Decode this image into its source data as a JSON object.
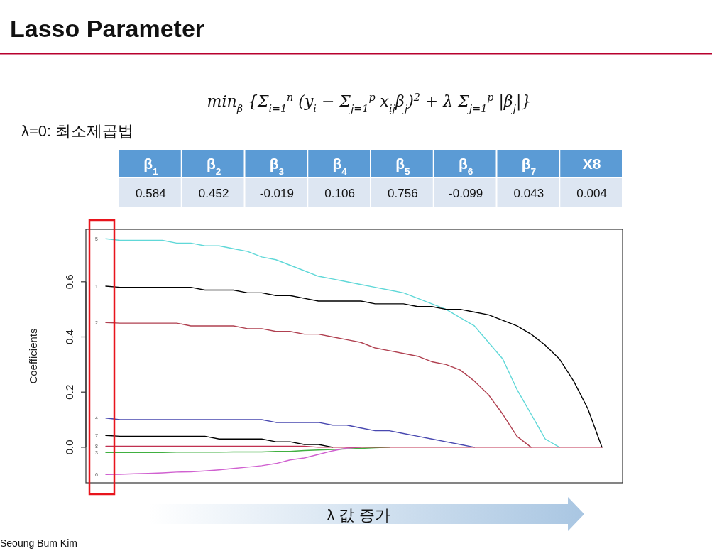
{
  "chart_data": {
    "type": "line",
    "title": "Lasso Parameter",
    "xlabel": "λ 값 증가",
    "ylabel": "Coefficients",
    "annotations": [
      "λ=0: 최소제곱법",
      "min$_{β}$ {Σ$_{i=1}$$^{n}$ (y$_{i}$ − Σ$_{j=1}$$^{p}$ x$_{ij}$β$_{j}$)$^{2}$ + λ Σ$_{j=1}$$^{p}$ |β$_{j}$|}",
      "β$_{1}$",
      "β$_{2}$",
      "β$_{3}$",
      "β$_{4}$",
      "β$_{5}$",
      "β$_{6}$",
      "β$_{7}$",
      "X8",
      "0.584",
      "0.452",
      "-0.019",
      "0.106",
      "0.756",
      "-0.099",
      "0.043",
      "0.004",
      "Seoung Bum Kim"
    ],
    "categories": [
      null,
      null,
      null,
      null,
      null,
      null,
      null,
      null,
      null,
      null,
      null,
      null,
      null,
      null,
      null,
      null,
      null,
      null,
      null,
      null,
      null,
      null,
      null,
      null,
      null,
      null,
      null,
      null,
      null,
      null,
      null,
      null,
      null,
      null,
      null,
      null
    ],
    "series": [
      {
        "name": "5",
        "color": "#60d8d8",
        "values": [
          0.756,
          0.75,
          0.75,
          0.75,
          0.75,
          0.74,
          0.74,
          0.73,
          0.73,
          0.72,
          0.71,
          0.69,
          0.68,
          0.66,
          0.64,
          0.62,
          0.61,
          0.6,
          0.59,
          0.58,
          0.57,
          0.56,
          0.54,
          0.52,
          0.5,
          0.47,
          0.44,
          0.38,
          0.32,
          0.21,
          0.12,
          0.03,
          0,
          null,
          null,
          null
        ]
      },
      {
        "name": "1",
        "color": "#000000",
        "values": [
          0.584,
          0.58,
          0.58,
          0.58,
          0.58,
          0.58,
          0.58,
          0.57,
          0.57,
          0.57,
          0.56,
          0.56,
          0.55,
          0.55,
          0.54,
          0.53,
          0.53,
          0.53,
          0.53,
          0.52,
          0.52,
          0.52,
          0.51,
          0.51,
          0.5,
          0.5,
          0.49,
          0.48,
          0.46,
          0.44,
          0.41,
          0.37,
          0.32,
          0.24,
          0.14,
          0
        ]
      },
      {
        "name": "2",
        "color": "#b04050",
        "values": [
          0.452,
          0.45,
          0.45,
          0.45,
          0.45,
          0.45,
          0.44,
          0.44,
          0.44,
          0.44,
          0.43,
          0.43,
          0.42,
          0.42,
          0.41,
          0.41,
          0.4,
          0.39,
          0.38,
          0.36,
          0.35,
          0.34,
          0.33,
          0.31,
          0.3,
          0.28,
          0.24,
          0.19,
          0.12,
          0.04,
          0,
          null,
          null,
          null,
          null,
          null
        ]
      },
      {
        "name": "4",
        "color": "#4848b0",
        "values": [
          0.106,
          0.1,
          0.1,
          0.1,
          0.1,
          0.1,
          0.1,
          0.1,
          0.1,
          0.1,
          0.1,
          0.1,
          0.09,
          0.09,
          0.09,
          0.09,
          0.08,
          0.08,
          0.07,
          0.06,
          0.06,
          0.05,
          0.04,
          0.03,
          0.02,
          0.01,
          0,
          null,
          null,
          null,
          null,
          null,
          null,
          null,
          null,
          null
        ]
      },
      {
        "name": "7",
        "color": "#000000",
        "values": [
          0.043,
          0.04,
          0.04,
          0.04,
          0.04,
          0.04,
          0.04,
          0.04,
          0.03,
          0.03,
          0.03,
          0.03,
          0.02,
          0.02,
          0.01,
          0.01,
          0,
          null,
          null,
          null,
          null,
          null,
          null,
          null,
          null,
          null,
          null,
          null,
          null,
          null,
          null,
          null,
          null,
          null,
          null,
          null
        ]
      },
      {
        "name": "3",
        "color": "#40b040",
        "values": [
          -0.019,
          -0.019,
          -0.019,
          -0.019,
          -0.019,
          -0.018,
          -0.018,
          -0.018,
          -0.018,
          -0.017,
          -0.017,
          -0.017,
          -0.015,
          -0.015,
          -0.012,
          -0.01,
          -0.008,
          -0.006,
          -0.004,
          -0.002,
          0,
          null,
          null,
          null,
          null,
          null,
          null,
          null,
          null,
          null,
          null,
          null,
          null,
          null,
          null,
          null
        ]
      },
      {
        "name": "6",
        "color": "#d060d0",
        "values": [
          -0.099,
          -0.098,
          -0.096,
          -0.095,
          -0.093,
          -0.09,
          -0.089,
          -0.086,
          -0.082,
          -0.077,
          -0.072,
          -0.067,
          -0.059,
          -0.046,
          -0.039,
          -0.026,
          -0.013,
          -0.003,
          0,
          null,
          null,
          null,
          null,
          null,
          null,
          null,
          null,
          null,
          null,
          null,
          null,
          null,
          null,
          null,
          null,
          null
        ]
      },
      {
        "name": "8",
        "color": "#c03050",
        "values": [
          0.004,
          0.004,
          0.004,
          0.004,
          0.004,
          0.004,
          0.004,
          0.004,
          0.004,
          0.004,
          0.004,
          0.004,
          0.004,
          0.004,
          0.004,
          0,
          0,
          0,
          0,
          0,
          0,
          0,
          0,
          0,
          0,
          0,
          0,
          0,
          0,
          0,
          0,
          0,
          0,
          0,
          0,
          0
        ]
      }
    ],
    "ylim": [
      -0.129,
      0.79
    ],
    "yticks": [
      {
        "value": 0,
        "label": "0.0"
      },
      0.2,
      0.4,
      0.6
    ],
    "tick_labels": "y",
    "grid": false,
    "marker": "none",
    "line_style": "solid"
  }
}
